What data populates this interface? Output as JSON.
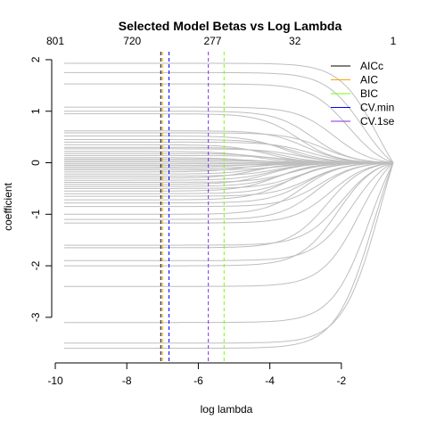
{
  "chart_data": {
    "type": "line",
    "title": "Selected Model Betas vs Log Lambda",
    "xlabel": "log lambda",
    "ylabel": "coefficient",
    "xlim": [
      -10.05,
      -0.45
    ],
    "ylim": [
      -3.85,
      2.12
    ],
    "x_ticks": [
      -10,
      -8,
      -6,
      -4,
      -2
    ],
    "y_ticks": [
      -3,
      -2,
      -1,
      0,
      1,
      2
    ],
    "top_axis": {
      "ticks": [
        {
          "x": -10,
          "label": "801"
        },
        {
          "x": -7.85,
          "label": "720"
        },
        {
          "x": -5.6,
          "label": "277"
        },
        {
          "x": -3.3,
          "label": "32"
        },
        {
          "x": -0.55,
          "label": "1"
        }
      ]
    },
    "legend": {
      "position": "top-right",
      "entries": [
        {
          "name": "AICc",
          "color": "#000000"
        },
        {
          "name": "AIC",
          "color": "#ffa500"
        },
        {
          "name": "BIC",
          "color": "#7cfc00"
        },
        {
          "name": "CV.min",
          "color": "#0000ff"
        },
        {
          "name": "CV.1se",
          "color": "#8a2be2"
        }
      ]
    },
    "vlines": [
      {
        "name": "AICc",
        "x": -7.05,
        "color": "#000000"
      },
      {
        "name": "AIC",
        "x": -7.0,
        "color": "#ffa500"
      },
      {
        "name": "BIC",
        "x": -5.28,
        "color": "#7cfc00"
      },
      {
        "name": "CV.min",
        "x": -6.82,
        "color": "#0000ff"
      },
      {
        "name": "CV.1se",
        "x": -5.72,
        "color": "#8a2be2"
      }
    ],
    "path_color": "#bebebe",
    "x_start": -9.75,
    "x_end": -0.55,
    "series": [
      {
        "start": 1.93,
        "fade": -1.0
      },
      {
        "start": 1.75,
        "fade": -1.4
      },
      {
        "start": 1.53,
        "fade": -1.8
      },
      {
        "start": 1.08,
        "fade": -2.2
      },
      {
        "start": 1.0,
        "fade": -2.8
      },
      {
        "start": 0.95,
        "fade": -3.2
      },
      {
        "start": 0.62,
        "fade": -3.0
      },
      {
        "start": 0.58,
        "fade": -2.5
      },
      {
        "start": 0.52,
        "fade": -3.6
      },
      {
        "start": 0.45,
        "fade": -3.3
      },
      {
        "start": 0.4,
        "fade": -2.9
      },
      {
        "start": 0.35,
        "fade": -4.1
      },
      {
        "start": 0.3,
        "fade": -3.7
      },
      {
        "start": 0.27,
        "fade": -3.2
      },
      {
        "start": 0.22,
        "fade": -4.4
      },
      {
        "start": 0.18,
        "fade": -3.9
      },
      {
        "start": 0.14,
        "fade": -3.5
      },
      {
        "start": 0.1,
        "fade": -4.6
      },
      {
        "start": 0.07,
        "fade": -4.2
      },
      {
        "start": 0.04,
        "fade": -3.8
      },
      {
        "start": 0.01,
        "fade": -4.8
      },
      {
        "start": -0.02,
        "fade": -4.3
      },
      {
        "start": -0.05,
        "fade": -3.9
      },
      {
        "start": -0.08,
        "fade": -4.5
      },
      {
        "start": -0.11,
        "fade": -4.1
      },
      {
        "start": -0.14,
        "fade": -3.6
      },
      {
        "start": -0.18,
        "fade": -4.7
      },
      {
        "start": -0.22,
        "fade": -4.2
      },
      {
        "start": -0.26,
        "fade": -3.8
      },
      {
        "start": -0.3,
        "fade": -4.4
      },
      {
        "start": -0.34,
        "fade": -3.9
      },
      {
        "start": -0.38,
        "fade": -3.4
      },
      {
        "start": -0.42,
        "fade": -4.0
      },
      {
        "start": -0.46,
        "fade": -3.6
      },
      {
        "start": -0.5,
        "fade": -3.2
      },
      {
        "start": -0.55,
        "fade": -3.8
      },
      {
        "start": -0.6,
        "fade": -3.3
      },
      {
        "start": -0.65,
        "fade": -2.9
      },
      {
        "start": -0.72,
        "fade": -3.5
      },
      {
        "start": -0.78,
        "fade": -3.0
      },
      {
        "start": -0.85,
        "fade": -2.6
      },
      {
        "start": -1.0,
        "fade": -3.1
      },
      {
        "start": -1.1,
        "fade": -2.7
      },
      {
        "start": -1.17,
        "fade": -2.3
      },
      {
        "start": -1.6,
        "fade": -2.0
      },
      {
        "start": -1.65,
        "fade": -2.4
      },
      {
        "start": -1.9,
        "fade": -1.7
      },
      {
        "start": -2.0,
        "fade": -2.1
      },
      {
        "start": -2.4,
        "fade": -1.5
      },
      {
        "start": -3.1,
        "fade": -1.2
      },
      {
        "start": -3.5,
        "fade": -0.9
      },
      {
        "start": -3.6,
        "fade": -1.1
      }
    ]
  }
}
